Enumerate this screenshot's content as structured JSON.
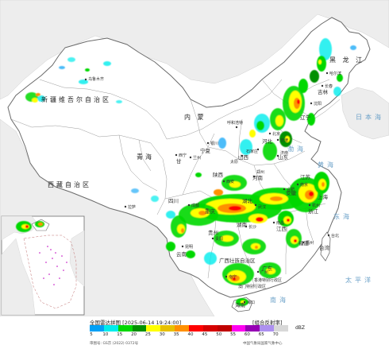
{
  "map": {
    "regions": {
      "xinjiang": "新疆维吾尔自治区",
      "tibet": "西藏自治区",
      "qinghai": "青海",
      "inner_mongolia": "内  蒙",
      "heilongjiang": "黑 龙 江",
      "gansu": "甘",
      "sichuan": "四川",
      "yunnan": "云南",
      "guangxi": "广西壮族自治区",
      "ningxia": "宁夏",
      "shaanxi": "陕西",
      "shanxi": "山西",
      "hebei": "河北",
      "henan": "河南",
      "hubei": "湖北",
      "hunan": "湖南",
      "jiangxi": "江西",
      "jilin": "吉林",
      "liaoning": "辽宁",
      "guangdong": "广东",
      "hainan": "海南",
      "guizhou": "贵州",
      "anhui": "安徽",
      "zhejiang": "浙江",
      "fujian": "福建",
      "shandong": "山东",
      "jiangsu": "江苏",
      "shanghai": "上海",
      "taiwan": "台湾",
      "chongqing": "重庆"
    },
    "cities": {
      "urumqi": "乌鲁木齐",
      "lhasa": "拉萨",
      "xining": "西宁",
      "lanzhou": "兰州",
      "yinchuan": "银川",
      "xian": "西安",
      "chengdu": "成都",
      "kunming": "昆明",
      "guiyang": "贵阳",
      "nanning": "南宁",
      "guangzhou": "广州",
      "haikou": "海口",
      "hohhot": "呼和浩特",
      "beijing": "北京",
      "tianjin": "天津",
      "shijiazhuang": "石家庄",
      "taiyuan": "太原",
      "zhengzhou": "郑州",
      "jinan": "济南",
      "wuhan": "武汉",
      "changsha": "长沙",
      "nanchang": "南昌",
      "hefei": "合肥",
      "nanjing": "南京",
      "hangzhou": "杭州",
      "fuzhou": "福州",
      "taipei": "台北",
      "harbin": "哈尔滨",
      "changchun": "长春",
      "shenyang": "沈阳",
      "hongkong": "香港特别行政区",
      "macau": "澳门特别行政区"
    },
    "seas": {
      "bohai": "渤海",
      "yellow_sea": "黄海",
      "east_sea": "东海",
      "pacific": "太平洋",
      "south_sea": "南海",
      "japan_sea": "日本海"
    }
  },
  "legend": {
    "title": "全国雷达拼图 [2025-06-14 19:24:00]",
    "product": "[组合反射率]",
    "unit": "dBZ",
    "ticks": [
      "5",
      "10",
      "15",
      "20",
      "25",
      "30",
      "35",
      "40",
      "45",
      "50",
      "55",
      "60",
      "65",
      "70"
    ],
    "colors": [
      "#01a0f6",
      "#00ecec",
      "#00d800",
      "#019000",
      "#ffff00",
      "#e7c000",
      "#ff9000",
      "#ff0000",
      "#d60000",
      "#c00000",
      "#ff00f0",
      "#9600b4",
      "#ad90f0",
      "#d8d8d8"
    ],
    "map_no": "审图号: GS京 (2022) 0372号",
    "org": "中国气象局国家气象中心"
  }
}
